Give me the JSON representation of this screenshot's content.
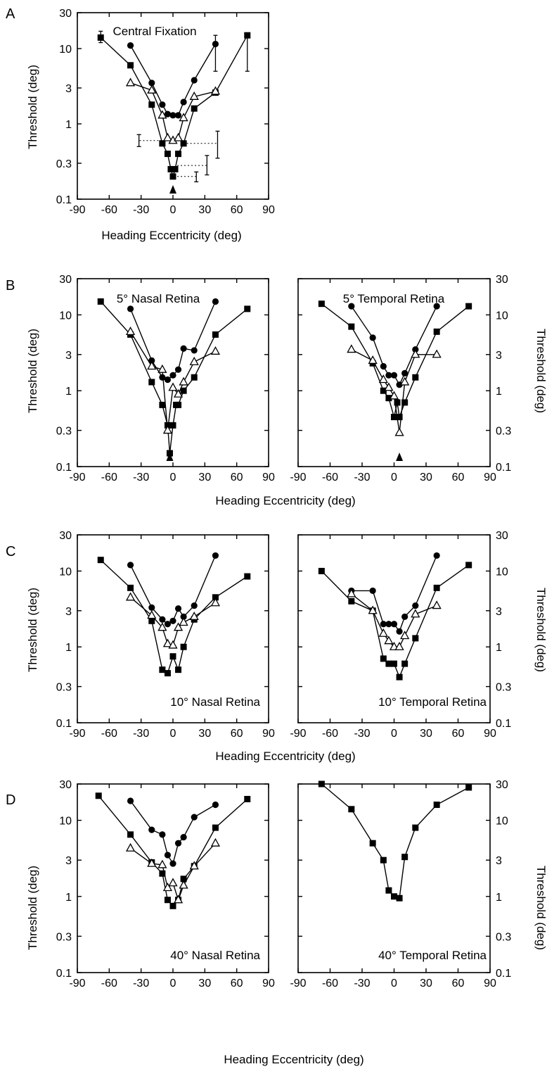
{
  "figure": {
    "axes": {
      "xlabel": "Heading Eccentricity (deg)",
      "ylabel": "Threshold (deg)",
      "xticks": [
        "-90",
        "-60",
        "-30",
        "0",
        "30",
        "60",
        "90"
      ],
      "yticks": [
        "0.1",
        "0.3",
        "1",
        "3",
        "10",
        "30"
      ],
      "xlim": [
        -90,
        90
      ],
      "ylim": [
        0.1,
        30
      ],
      "yscale": "log"
    },
    "markers": {
      "filled_square": "filled-square",
      "filled_circle": "filled-circle",
      "open_triangle": "open-triangle",
      "arrow": "up-arrow"
    }
  },
  "chart_data": [
    {
      "type": "line",
      "panel": "A",
      "title": "Central Fixation",
      "series": [
        {
          "marker": "square",
          "x": [
            -68,
            -40,
            -20,
            -10,
            -5,
            -2,
            0,
            2,
            5,
            10,
            20,
            40,
            70
          ],
          "y": [
            14,
            6,
            1.8,
            0.55,
            0.4,
            0.25,
            0.2,
            0.25,
            0.4,
            0.55,
            1.6,
            2.6,
            15
          ]
        },
        {
          "marker": "circle",
          "x": [
            -40,
            -20,
            -10,
            -5,
            0,
            5,
            10,
            20,
            40
          ],
          "y": [
            11,
            3.5,
            1.8,
            1.35,
            1.3,
            1.3,
            1.95,
            3.8,
            11.5
          ]
        },
        {
          "marker": "triangle",
          "x": [
            -40,
            -20,
            -10,
            -5,
            0,
            5,
            10,
            20,
            40
          ],
          "y": [
            3.5,
            2.8,
            1.3,
            0.65,
            0.6,
            0.65,
            1.2,
            2.3,
            2.7
          ]
        }
      ],
      "errorbars": [
        {
          "x": -68,
          "y": 14,
          "low": 12,
          "high": 17
        },
        {
          "x": 40,
          "y": 11.5,
          "low": 5,
          "high": 15
        },
        {
          "x": 70,
          "y": 15,
          "low": 5,
          "high": 15
        }
      ],
      "guides": [
        {
          "y": 0.6,
          "from_x": -7,
          "to_x": -32,
          "bar": [
            0.5,
            0.72
          ]
        },
        {
          "y": 0.55,
          "from_x": 13,
          "to_x": 42,
          "bar": [
            0.35,
            0.8
          ]
        },
        {
          "y": 0.28,
          "from_x": 4,
          "to_x": 32,
          "bar": [
            0.21,
            0.38
          ]
        },
        {
          "y": 0.2,
          "from_x": 4,
          "to_x": 22,
          "bar": [
            0.17,
            0.23
          ]
        }
      ],
      "arrow_x": 0
    },
    {
      "type": "line",
      "panel": "B",
      "title": "5° Nasal Retina",
      "series": [
        {
          "marker": "square",
          "x": [
            -68,
            -40,
            -20,
            -10,
            -5,
            -3,
            0,
            3,
            5,
            10,
            20,
            40,
            70
          ],
          "y": [
            15,
            5.5,
            1.3,
            0.65,
            0.35,
            0.15,
            0.35,
            0.65,
            0.65,
            1,
            1.5,
            5.5,
            12
          ]
        },
        {
          "marker": "circle",
          "x": [
            -40,
            -20,
            -10,
            -5,
            0,
            5,
            10,
            20,
            40
          ],
          "y": [
            12,
            2.5,
            1.5,
            1.4,
            1.6,
            1.9,
            3.6,
            3.4,
            15
          ]
        },
        {
          "marker": "triangle",
          "x": [
            -40,
            -20,
            -10,
            -5,
            0,
            5,
            10,
            20,
            40
          ],
          "y": [
            6,
            2.1,
            1.9,
            0.3,
            1.1,
            0.9,
            1.3,
            2.4,
            3.3
          ]
        }
      ],
      "arrow_x": -3
    },
    {
      "type": "line",
      "panel": "B",
      "title": "5° Temporal Retina",
      "yaxis_right": true,
      "series": [
        {
          "marker": "square",
          "x": [
            -68,
            -40,
            -20,
            -10,
            -5,
            0,
            3,
            5,
            10,
            20,
            40,
            70
          ],
          "y": [
            14,
            7,
            2.3,
            1,
            0.8,
            0.45,
            0.7,
            0.45,
            0.7,
            1.5,
            6,
            13
          ]
        },
        {
          "marker": "circle",
          "x": [
            -40,
            -20,
            -10,
            -5,
            0,
            5,
            10,
            20,
            40
          ],
          "y": [
            13,
            5,
            2.1,
            1.6,
            1.6,
            1.2,
            1.7,
            3.5,
            13
          ]
        },
        {
          "marker": "triangle",
          "x": [
            -40,
            -20,
            -10,
            -5,
            0,
            5,
            10,
            20,
            40
          ],
          "y": [
            3.5,
            2.5,
            1.4,
            1.1,
            0.85,
            0.28,
            1.3,
            3,
            3
          ]
        }
      ],
      "arrow_x": 5
    },
    {
      "type": "line",
      "panel": "C",
      "title": "10° Nasal Retina",
      "series": [
        {
          "marker": "square",
          "x": [
            -68,
            -40,
            -20,
            -10,
            -5,
            0,
            5,
            10,
            20,
            40,
            70
          ],
          "y": [
            14,
            6,
            2.2,
            0.5,
            0.45,
            0.75,
            0.5,
            1,
            2.3,
            4.5,
            8.5
          ]
        },
        {
          "marker": "circle",
          "x": [
            -40,
            -20,
            -10,
            -5,
            0,
            5,
            10,
            20,
            40
          ],
          "y": [
            12,
            3.3,
            2.3,
            2,
            2.2,
            3.2,
            2.5,
            3.5,
            16
          ]
        },
        {
          "marker": "triangle",
          "x": [
            -40,
            -20,
            -10,
            -5,
            0,
            5,
            10,
            20,
            40
          ],
          "y": [
            4.5,
            2.6,
            1.8,
            1.1,
            1.05,
            1.8,
            2.1,
            2.5,
            3.8
          ]
        }
      ]
    },
    {
      "type": "line",
      "panel": "C",
      "title": "10° Temporal Retina",
      "yaxis_right": true,
      "series": [
        {
          "marker": "square",
          "x": [
            -68,
            -40,
            -20,
            -10,
            -5,
            0,
            5,
            10,
            20,
            40,
            70
          ],
          "y": [
            10,
            4,
            3,
            0.7,
            0.6,
            0.6,
            0.4,
            0.6,
            1.3,
            6,
            12
          ]
        },
        {
          "marker": "circle",
          "x": [
            -40,
            -20,
            -10,
            -5,
            0,
            5,
            10,
            20,
            40
          ],
          "y": [
            5.5,
            5.5,
            2,
            2,
            2,
            1.6,
            2.5,
            3.5,
            16
          ]
        },
        {
          "marker": "triangle",
          "x": [
            -40,
            -20,
            -10,
            -5,
            0,
            5,
            10,
            20,
            40
          ],
          "y": [
            5,
            3,
            1.5,
            1.2,
            1,
            1,
            1.4,
            2.7,
            3.5
          ]
        }
      ]
    },
    {
      "type": "line",
      "panel": "D",
      "title": "40° Nasal Retina",
      "series": [
        {
          "marker": "square",
          "x": [
            -70,
            -40,
            -20,
            -10,
            -5,
            0,
            5,
            10,
            20,
            40,
            70
          ],
          "y": [
            21,
            6.5,
            2.8,
            2,
            0.9,
            0.75,
            0.9,
            1.7,
            2.5,
            8,
            19
          ]
        },
        {
          "marker": "circle",
          "x": [
            -40,
            -20,
            -10,
            -5,
            0,
            5,
            10,
            20,
            40
          ],
          "y": [
            18,
            7.5,
            6.5,
            3.5,
            2.7,
            5,
            6,
            11,
            16
          ]
        },
        {
          "marker": "triangle",
          "x": [
            -40,
            -20,
            -10,
            -5,
            0,
            5,
            10,
            20,
            40
          ],
          "y": [
            4.3,
            2.7,
            2.6,
            1.3,
            1.5,
            0.9,
            1.4,
            2.5,
            5
          ]
        }
      ]
    },
    {
      "type": "line",
      "panel": "D",
      "title": "40° Temporal Retina",
      "yaxis_right": true,
      "series": [
        {
          "marker": "square",
          "x": [
            -68,
            -40,
            -20,
            -10,
            -5,
            0,
            5,
            10,
            20,
            40,
            70
          ],
          "y": [
            30,
            14,
            5,
            3,
            1.2,
            1,
            0.95,
            3.3,
            8,
            16,
            27
          ]
        }
      ]
    }
  ],
  "panel_labels": [
    "A",
    "B",
    "C",
    "D"
  ]
}
